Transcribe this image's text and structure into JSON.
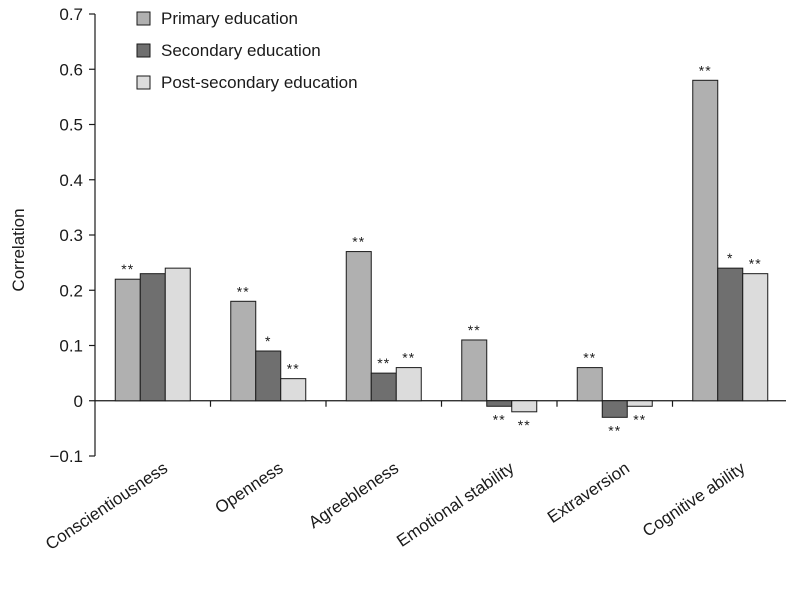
{
  "chart_data": {
    "type": "bar",
    "title": "",
    "xlabel": "",
    "ylabel": "Correlation",
    "ylim": [
      -0.1,
      0.7
    ],
    "yticks": [
      "−0.1",
      "0",
      "0.1",
      "0.2",
      "0.3",
      "0.4",
      "0.5",
      "0.6",
      "0.7"
    ],
    "ytick_values": [
      -0.1,
      0,
      0.1,
      0.2,
      0.3,
      0.4,
      0.5,
      0.6,
      0.7
    ],
    "categories": [
      "Conscientiousness",
      "Openness",
      "Agreebleness",
      "Emotional stability",
      "Extraversion",
      "Cognitive ability"
    ],
    "series": [
      {
        "name": "Primary education",
        "color": "#b0b0b0",
        "values": [
          0.22,
          0.18,
          0.27,
          0.11,
          0.06,
          0.58
        ],
        "significance": [
          "**",
          "**",
          "**",
          "**",
          "**",
          "**"
        ]
      },
      {
        "name": "Secondary education",
        "color": "#6f6f6f",
        "values": [
          0.23,
          0.09,
          0.05,
          -0.01,
          -0.03,
          0.24
        ],
        "significance": [
          "",
          "*",
          "**",
          "**",
          "**",
          "*"
        ]
      },
      {
        "name": "Post-secondary education",
        "color": "#dcdcdc",
        "values": [
          0.24,
          0.04,
          0.06,
          -0.02,
          -0.01,
          0.23
        ],
        "significance": [
          "",
          "**",
          "**",
          "**",
          "**",
          "**"
        ]
      }
    ],
    "legend_position": "top-left",
    "grid": false
  }
}
